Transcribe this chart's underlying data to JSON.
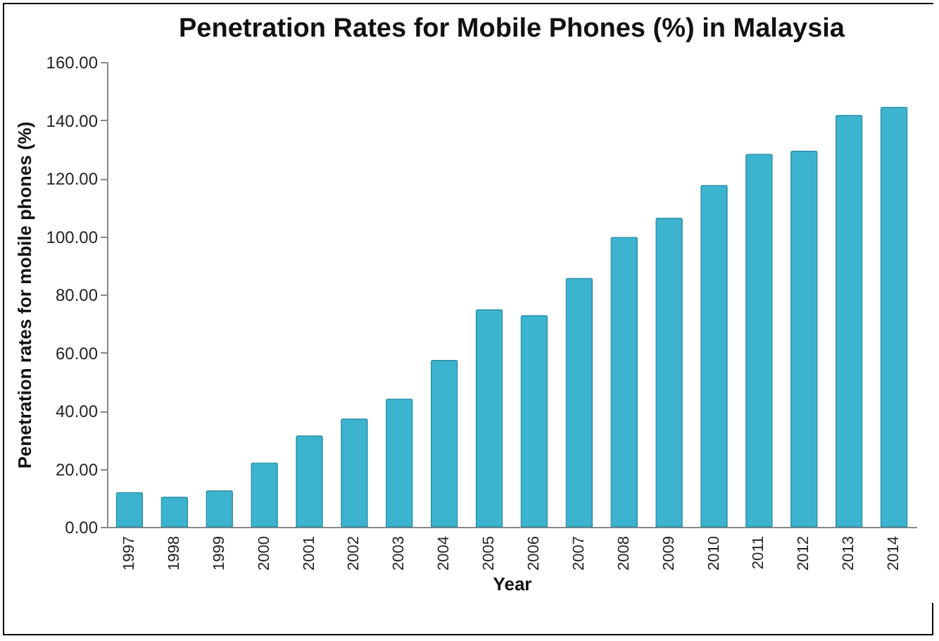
{
  "chart_data": {
    "type": "bar",
    "title": "Penetration Rates for Mobile Phones (%) in Malaysia",
    "xlabel": "Year",
    "ylabel": "Penetration rates for mobile phones (%)",
    "categories": [
      "1997",
      "1998",
      "1999",
      "2000",
      "2001",
      "2002",
      "2003",
      "2004",
      "2005",
      "2006",
      "2007",
      "2008",
      "2009",
      "2010",
      "2011",
      "2012",
      "2013",
      "2014"
    ],
    "values": [
      11.8,
      10.2,
      12.4,
      22,
      31.3,
      37.1,
      44,
      57.3,
      74.7,
      72.7,
      85.5,
      99.6,
      106.2,
      117.5,
      128.2,
      129.3,
      141.6,
      144.4
    ],
    "color": "#3cb4d0",
    "ylim": [
      0,
      160
    ],
    "yticks": [
      {
        "value": 0,
        "label": "0.00"
      },
      {
        "value": 20,
        "label": "20.00"
      },
      {
        "value": 40,
        "label": "40.00"
      },
      {
        "value": 60,
        "label": "60.00"
      },
      {
        "value": 80,
        "label": "80.00"
      },
      {
        "value": 100,
        "label": "100.00"
      },
      {
        "value": 120,
        "label": "120.00"
      },
      {
        "value": 140,
        "label": "140.00"
      },
      {
        "value": 160,
        "label": "160.00"
      }
    ],
    "grid": false
  }
}
